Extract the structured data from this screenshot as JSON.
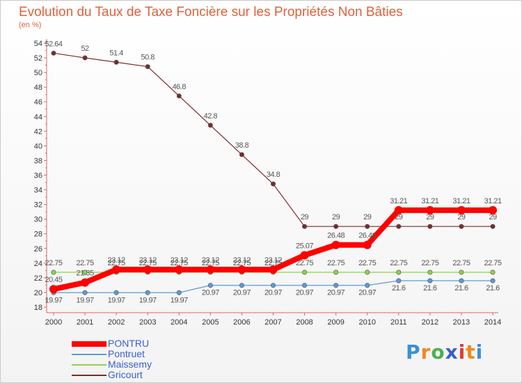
{
  "title": "Evolution du Taux de Taxe Foncière sur les Propriétés Non Bâties",
  "subtitle": "(en %)",
  "logo": {
    "text": "Proxiti",
    "letters": [
      "P",
      "r",
      "o",
      "x",
      "i",
      "t",
      "i"
    ],
    "colors": [
      "#3a8fd6",
      "#ef8a1b",
      "#4caf50",
      "#3a5fd0",
      "#e53935",
      "#ef8a1b",
      "#3a8fd6"
    ]
  },
  "chart_data": {
    "type": "line",
    "title": "Evolution du Taux de Taxe Foncière sur les Propriétés Non Bâties",
    "ylabel": "(en %)",
    "xlabel": "",
    "ylim": [
      18,
      54
    ],
    "yticks": [
      18,
      20,
      22,
      24,
      26,
      28,
      30,
      32,
      34,
      36,
      38,
      40,
      42,
      44,
      46,
      48,
      50,
      52,
      54
    ],
    "categories": [
      "2000",
      "2001",
      "2002",
      "2003",
      "2004",
      "2005",
      "2006",
      "2007",
      "2008",
      "2009",
      "2010",
      "2011",
      "2012",
      "2013",
      "2014"
    ],
    "grid": false,
    "legend_position": "bottom-left",
    "series": [
      {
        "name": "PONTRU",
        "color": "#ff0000",
        "values": [
          20.45,
          21.35,
          23.12,
          23.12,
          23.12,
          23.12,
          23.12,
          23.12,
          25.07,
          26.48,
          26.48,
          31.21,
          31.21,
          31.21,
          31.21
        ],
        "labels": [
          "20.45",
          "21.35",
          "23.12",
          "23.12",
          "23.12",
          "23.12",
          "23.12",
          "23.12",
          "25.07",
          "26.48",
          "26.48",
          "31.21",
          "31.21",
          "31.21",
          "31.21"
        ]
      },
      {
        "name": "Pontruet",
        "color": "#5b9bd5",
        "values": [
          19.97,
          19.97,
          19.97,
          19.97,
          19.97,
          20.97,
          20.97,
          20.97,
          20.97,
          20.97,
          20.97,
          21.6,
          21.6,
          21.6,
          21.6
        ],
        "labels": [
          "19.97",
          "19.97",
          "19.97",
          "19.97",
          "19.97",
          "20.97",
          "20.97",
          "20.97",
          "20.97",
          "20.97",
          "20.97",
          "21.6",
          "21.6",
          "21.6",
          "21.6"
        ]
      },
      {
        "name": "Maissemy",
        "color": "#8fd14f",
        "values": [
          22.75,
          22.75,
          22.75,
          22.75,
          22.75,
          22.75,
          22.75,
          22.75,
          22.75,
          22.75,
          22.75,
          22.75,
          22.75,
          22.75,
          22.75
        ],
        "labels": [
          "22.75",
          "22.75",
          "22.75",
          "22.75",
          "22.75",
          "22.75",
          "22.75",
          "22.75",
          "22.75",
          "22.75",
          "22.75",
          "22.75",
          "22.75",
          "22.75",
          "22.75"
        ]
      },
      {
        "name": "Gricourt",
        "color": "#7b2a2a",
        "values": [
          52.64,
          52,
          51.4,
          50.8,
          46.8,
          42.8,
          38.8,
          34.8,
          29,
          29,
          29,
          29,
          29,
          29,
          29
        ],
        "labels": [
          "52.64",
          "52",
          "51.4",
          "50.8",
          "46.8",
          "42.8",
          "38.8",
          "34.8",
          "29",
          "29",
          "29",
          "29",
          "29",
          "29",
          "29"
        ]
      }
    ]
  }
}
